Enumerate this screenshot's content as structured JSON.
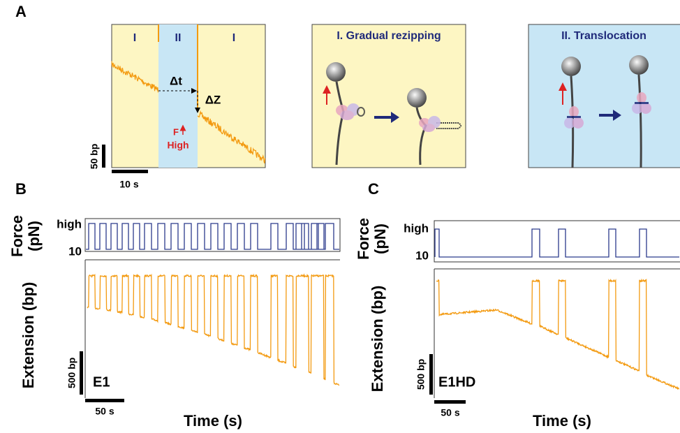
{
  "panels": {
    "A": {
      "label": "A",
      "phases": [
        "I",
        "II",
        "I"
      ],
      "delta_t": "Δt",
      "delta_z": "ΔZ",
      "force_note": "F",
      "force_level": "High",
      "scale_y": "50 bp",
      "scale_x": "10 s",
      "schematic_1": {
        "title": "I. Gradual rezipping"
      },
      "schematic_2": {
        "title": "II. Translocation"
      }
    },
    "B": {
      "label": "B",
      "force_axis": [
        "Force",
        "(pN)"
      ],
      "force_high": "high",
      "force_low": "10",
      "extension_axis": "Extension (bp)",
      "scale_y": "500 bp",
      "sample": "E1",
      "scale_x": "50 s",
      "time_axis": "Time (s)"
    },
    "C": {
      "label": "C",
      "force_axis": [
        "Force",
        "(pN)"
      ],
      "force_high": "high",
      "force_low": "10",
      "extension_axis": "Extension (bp)",
      "scale_y": "500 bp",
      "sample": "E1HD",
      "scale_x": "50 s",
      "time_axis": "Time (s)"
    }
  }
}
